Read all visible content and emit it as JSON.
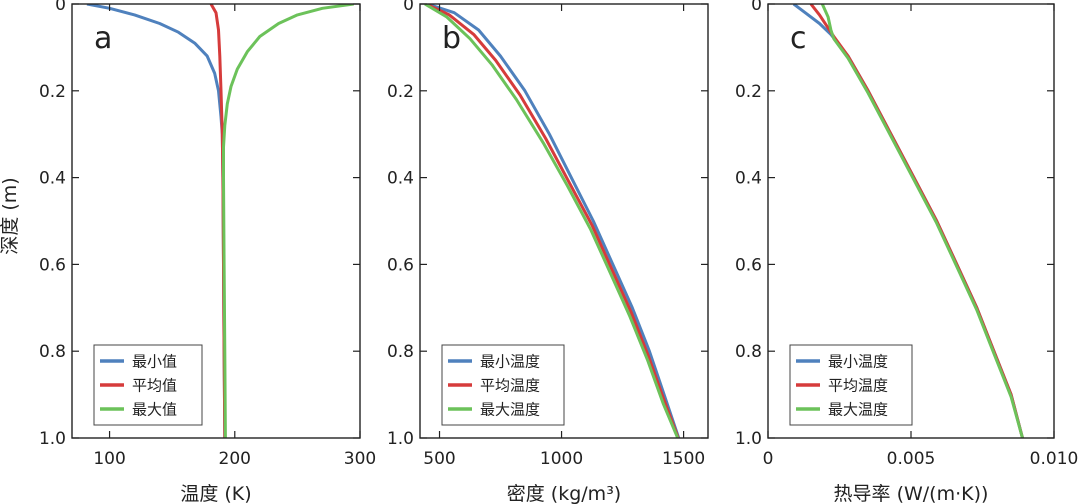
{
  "figure": {
    "ylabel": "深度 (m)"
  },
  "chart_data": [
    {
      "type": "line",
      "panel_label": "a",
      "xlabel": "温度 (K)",
      "ylabel": "深度 (m)",
      "xlim": [
        70,
        300
      ],
      "ylim": [
        1.0,
        0
      ],
      "xticks": [
        100,
        200,
        300
      ],
      "yticks": [
        0,
        0.2,
        0.4,
        0.6,
        0.8,
        1.0
      ],
      "ytick_labels": [
        "0",
        "0.2",
        "0.4",
        "0.6",
        "0.8",
        "1.0"
      ],
      "legend_position": "bottom-left",
      "series": [
        {
          "name": "最小值",
          "color": "#4f81bd",
          "points": [
            [
              82,
              0.0
            ],
            [
              100,
              0.01
            ],
            [
              120,
              0.025
            ],
            [
              140,
              0.045
            ],
            [
              155,
              0.065
            ],
            [
              168,
              0.09
            ],
            [
              178,
              0.12
            ],
            [
              184,
              0.16
            ],
            [
              187,
              0.2
            ],
            [
              189,
              0.26
            ],
            [
              190,
              0.3
            ],
            [
              190.5,
              0.4
            ],
            [
              191,
              0.6
            ],
            [
              191.5,
              0.8
            ],
            [
              192,
              1.0
            ]
          ]
        },
        {
          "name": "平均值",
          "color": "#d63b3b",
          "points": [
            [
              181,
              0.0
            ],
            [
              185,
              0.02
            ],
            [
              187,
              0.06
            ],
            [
              188,
              0.12
            ],
            [
              189,
              0.2
            ],
            [
              190,
              0.3
            ],
            [
              190.5,
              0.4
            ],
            [
              191,
              0.6
            ],
            [
              191.5,
              0.8
            ],
            [
              192,
              1.0
            ]
          ]
        },
        {
          "name": "最大值",
          "color": "#6cc25a",
          "points": [
            [
              295,
              0.0
            ],
            [
              270,
              0.01
            ],
            [
              250,
              0.025
            ],
            [
              235,
              0.045
            ],
            [
              220,
              0.075
            ],
            [
              210,
              0.11
            ],
            [
              202,
              0.15
            ],
            [
              197,
              0.19
            ],
            [
              194,
              0.23
            ],
            [
              192,
              0.28
            ],
            [
              191,
              0.33
            ],
            [
              191,
              0.4
            ],
            [
              191.5,
              0.6
            ],
            [
              192,
              0.8
            ],
            [
              192.5,
              1.0
            ]
          ]
        }
      ]
    },
    {
      "type": "line",
      "panel_label": "b",
      "xlabel": "密度 (kg/m³)",
      "ylabel": "深度 (m)",
      "xlim": [
        420,
        1600
      ],
      "ylim": [
        1.0,
        0
      ],
      "xticks": [
        500,
        1000,
        1500
      ],
      "yticks": [
        0,
        0.2,
        0.4,
        0.6,
        0.8,
        1.0
      ],
      "ytick_labels": [
        "0",
        "0.2",
        "0.4",
        "0.6",
        "0.8",
        "1.0"
      ],
      "legend_position": "bottom-left",
      "series": [
        {
          "name": "最小温度",
          "color": "#4f81bd",
          "points": [
            [
              450,
              0.0
            ],
            [
              560,
              0.02
            ],
            [
              660,
              0.06
            ],
            [
              750,
              0.12
            ],
            [
              850,
              0.2
            ],
            [
              950,
              0.3
            ],
            [
              1040,
              0.4
            ],
            [
              1130,
              0.5
            ],
            [
              1210,
              0.6
            ],
            [
              1290,
              0.7
            ],
            [
              1360,
              0.8
            ],
            [
              1420,
              0.9
            ],
            [
              1480,
              1.0
            ]
          ]
        },
        {
          "name": "平均温度",
          "color": "#d63b3b",
          "points": [
            [
              445,
              0.0
            ],
            [
              540,
              0.025
            ],
            [
              640,
              0.07
            ],
            [
              730,
              0.13
            ],
            [
              830,
              0.21
            ],
            [
              935,
              0.31
            ],
            [
              1030,
              0.41
            ],
            [
              1125,
              0.51
            ],
            [
              1205,
              0.61
            ],
            [
              1285,
              0.71
            ],
            [
              1355,
              0.81
            ],
            [
              1418,
              0.91
            ],
            [
              1478,
              1.0
            ]
          ]
        },
        {
          "name": "最大温度",
          "color": "#6cc25a",
          "points": [
            [
              440,
              0.0
            ],
            [
              530,
              0.03
            ],
            [
              625,
              0.08
            ],
            [
              715,
              0.14
            ],
            [
              815,
              0.22
            ],
            [
              925,
              0.32
            ],
            [
              1025,
              0.42
            ],
            [
              1120,
              0.52
            ],
            [
              1200,
              0.62
            ],
            [
              1280,
              0.72
            ],
            [
              1352,
              0.82
            ],
            [
              1416,
              0.92
            ],
            [
              1476,
              1.0
            ]
          ]
        }
      ]
    },
    {
      "type": "line",
      "panel_label": "c",
      "xlabel": "热导率 (W/(m·K))",
      "ylabel": "深度 (m)",
      "xlim": [
        0,
        0.01
      ],
      "ylim": [
        1.0,
        0
      ],
      "xticks": [
        0,
        0.005,
        0.01
      ],
      "xtick_labels": [
        "0",
        "0.005",
        "0.010"
      ],
      "yticks": [
        0,
        0.2,
        0.4,
        0.6,
        0.8,
        1.0
      ],
      "ytick_labels": [
        "0",
        "0.2",
        "0.4",
        "0.6",
        "0.8",
        "1.0"
      ],
      "legend_position": "bottom-left",
      "series": [
        {
          "name": "最小温度",
          "color": "#4f81bd",
          "points": [
            [
              0.0009,
              0.0
            ],
            [
              0.0013,
              0.02
            ],
            [
              0.0018,
              0.045
            ],
            [
              0.0022,
              0.07
            ],
            [
              0.0028,
              0.12
            ],
            [
              0.0035,
              0.2
            ],
            [
              0.0043,
              0.3
            ],
            [
              0.0051,
              0.4
            ],
            [
              0.0059,
              0.5
            ],
            [
              0.0066,
              0.6
            ],
            [
              0.0073,
              0.7
            ],
            [
              0.0079,
              0.8
            ],
            [
              0.0085,
              0.9
            ],
            [
              0.0089,
              1.0
            ]
          ]
        },
        {
          "name": "平均温度",
          "color": "#d63b3b",
          "points": [
            [
              0.0015,
              0.0
            ],
            [
              0.0018,
              0.025
            ],
            [
              0.0021,
              0.055
            ],
            [
              0.0023,
              0.075
            ],
            [
              0.0028,
              0.12
            ],
            [
              0.0035,
              0.2
            ],
            [
              0.0043,
              0.3
            ],
            [
              0.0051,
              0.4
            ],
            [
              0.0059,
              0.5
            ],
            [
              0.0066,
              0.6
            ],
            [
              0.0073,
              0.7
            ],
            [
              0.0079,
              0.8
            ],
            [
              0.0085,
              0.9
            ],
            [
              0.0089,
              1.0
            ]
          ]
        },
        {
          "name": "最大温度",
          "color": "#6cc25a",
          "points": [
            [
              0.0019,
              0.0
            ],
            [
              0.0021,
              0.03
            ],
            [
              0.0022,
              0.06
            ],
            [
              0.0023,
              0.08
            ],
            [
              0.0028,
              0.125
            ],
            [
              0.0035,
              0.205
            ],
            [
              0.0043,
              0.305
            ],
            [
              0.0051,
              0.405
            ],
            [
              0.0059,
              0.505
            ],
            [
              0.0066,
              0.605
            ],
            [
              0.0073,
              0.705
            ],
            [
              0.0079,
              0.805
            ],
            [
              0.0085,
              0.905
            ],
            [
              0.0089,
              1.0
            ]
          ]
        }
      ]
    }
  ]
}
